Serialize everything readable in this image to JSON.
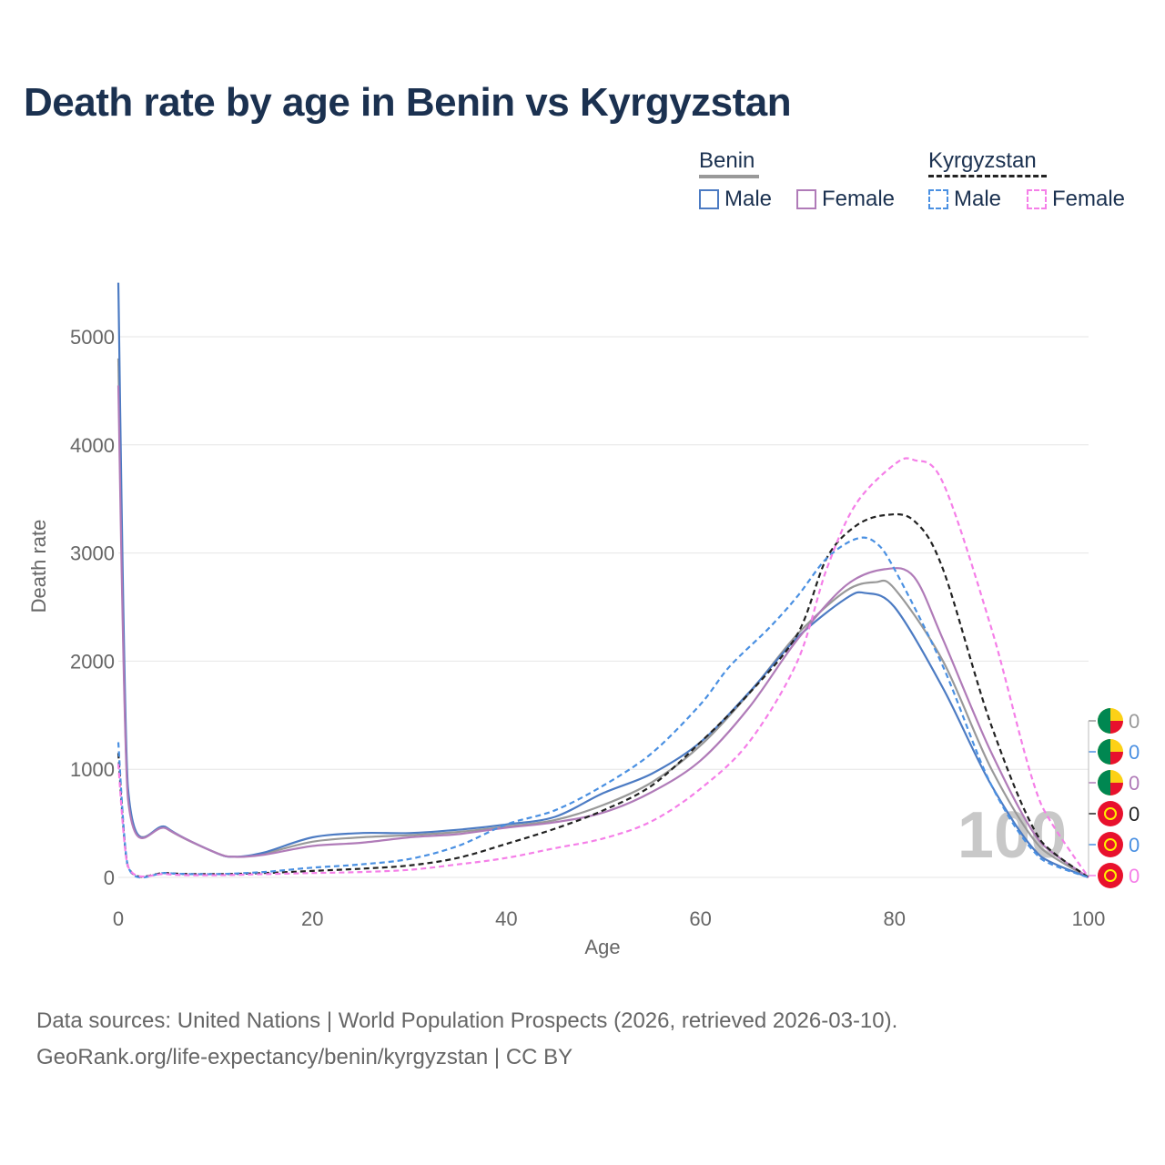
{
  "chart_data": {
    "type": "line",
    "title": "Death rate by age in Benin vs Kyrgyzstan",
    "xlabel": "Age",
    "ylabel": "Death rate",
    "xlim": [
      0,
      100
    ],
    "ylim": [
      0,
      5500
    ],
    "xticks": [
      0,
      20,
      40,
      60,
      80,
      100
    ],
    "yticks": [
      0,
      1000,
      2000,
      3000,
      4000,
      5000
    ],
    "xtick_labels": [
      "0",
      "20",
      "40",
      "60",
      "80",
      "100"
    ],
    "ytick_labels": [
      "0",
      "1000",
      "2000",
      "3000",
      "4000",
      "5000"
    ],
    "watermark": "100",
    "legend": {
      "groups": [
        {
          "name": "Benin",
          "items": [
            "Male",
            "Female"
          ]
        },
        {
          "name": "Kyrgyzstan",
          "items": [
            "Male",
            "Female"
          ]
        }
      ]
    },
    "end_labels": [
      "0",
      "0",
      "0",
      "0",
      "0",
      "0"
    ],
    "series": [
      {
        "name": "Benin Total",
        "country": "Benin",
        "dash": false,
        "color": "#999999",
        "x": [
          0,
          1,
          5,
          10,
          12,
          15,
          20,
          25,
          30,
          35,
          40,
          45,
          50,
          55,
          60,
          65,
          70,
          75,
          78,
          80,
          85,
          90,
          95,
          100
        ],
        "y": [
          4800,
          760,
          450,
          230,
          190,
          220,
          330,
          370,
          390,
          420,
          470,
          530,
          670,
          880,
          1220,
          1700,
          2250,
          2650,
          2730,
          2670,
          2000,
          1000,
          280,
          0
        ]
      },
      {
        "name": "Benin Male",
        "country": "Benin",
        "dash": false,
        "color": "#4c7bc3",
        "x": [
          0,
          1,
          5,
          10,
          12,
          15,
          20,
          25,
          30,
          35,
          40,
          45,
          50,
          55,
          60,
          65,
          70,
          75,
          77,
          80,
          85,
          90,
          95,
          100
        ],
        "y": [
          5500,
          820,
          460,
          230,
          190,
          230,
          370,
          410,
          410,
          440,
          490,
          560,
          780,
          960,
          1250,
          1710,
          2220,
          2580,
          2630,
          2500,
          1750,
          850,
          200,
          0
        ]
      },
      {
        "name": "Benin Female",
        "country": "Benin",
        "dash": false,
        "color": "#b07bb8",
        "x": [
          0,
          1,
          5,
          10,
          12,
          15,
          20,
          25,
          30,
          35,
          40,
          45,
          50,
          55,
          60,
          65,
          70,
          75,
          79,
          82,
          85,
          90,
          95,
          100
        ],
        "y": [
          4550,
          720,
          450,
          230,
          190,
          210,
          290,
          320,
          370,
          400,
          460,
          510,
          600,
          790,
          1080,
          1570,
          2200,
          2700,
          2850,
          2780,
          2200,
          1150,
          330,
          0
        ]
      },
      {
        "name": "Kyrgyzstan Total",
        "country": "Kyrgyzstan",
        "dash": true,
        "color": "#222222",
        "x": [
          0,
          1,
          5,
          10,
          15,
          20,
          25,
          30,
          35,
          40,
          45,
          50,
          55,
          60,
          65,
          70,
          73,
          76,
          79,
          82,
          85,
          90,
          95,
          100
        ],
        "y": [
          1150,
          100,
          40,
          30,
          40,
          60,
          80,
          110,
          180,
          310,
          450,
          620,
          850,
          1250,
          1700,
          2250,
          2950,
          3250,
          3350,
          3300,
          2850,
          1400,
          350,
          0
        ]
      },
      {
        "name": "Kyrgyzstan Male",
        "country": "Kyrgyzstan",
        "dash": true,
        "color": "#4a90e2",
        "x": [
          0,
          1,
          5,
          10,
          15,
          20,
          25,
          30,
          35,
          40,
          45,
          50,
          55,
          60,
          63,
          67,
          70,
          73,
          76,
          78,
          80,
          85,
          90,
          95,
          100
        ],
        "y": [
          1250,
          100,
          40,
          30,
          50,
          90,
          120,
          170,
          290,
          490,
          620,
          850,
          1150,
          1600,
          1950,
          2300,
          2600,
          2950,
          3130,
          3100,
          2850,
          1950,
          850,
          180,
          0
        ]
      },
      {
        "name": "Kyrgyzstan Female",
        "country": "Kyrgyzstan",
        "dash": true,
        "color": "#f57fe8",
        "x": [
          0,
          1,
          5,
          10,
          15,
          20,
          25,
          30,
          35,
          40,
          45,
          50,
          55,
          60,
          65,
          70,
          73,
          76,
          80,
          82,
          85,
          90,
          95,
          100
        ],
        "y": [
          1050,
          100,
          30,
          20,
          30,
          40,
          50,
          70,
          120,
          180,
          270,
          360,
          520,
          820,
          1250,
          2000,
          2850,
          3450,
          3820,
          3860,
          3650,
          2300,
          700,
          0
        ]
      }
    ]
  },
  "source": {
    "line1": "Data sources: United Nations | World Population Prospects (2026, retrieved 2026-03-10).",
    "line2": "GeoRank.org/life-expectancy/benin/kyrgyzstan | CC BY"
  }
}
